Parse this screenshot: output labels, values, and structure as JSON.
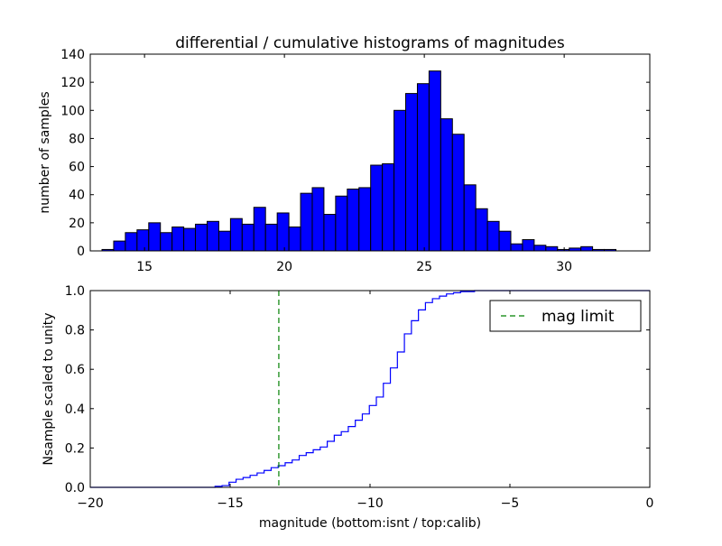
{
  "chart_data": [
    {
      "type": "bar",
      "title": "differential / cumulative histograms of magnitudes",
      "xlabel": "",
      "ylabel": "number of samples",
      "xlim": [
        13.06,
        33.06
      ],
      "ylim": [
        0,
        140
      ],
      "xticks": [
        15,
        20,
        25,
        30
      ],
      "yticks": [
        0,
        20,
        40,
        60,
        80,
        100,
        120,
        140
      ],
      "bin_start": 13.48,
      "bin_width": 0.4175,
      "values": [
        1,
        7,
        13,
        15,
        20,
        13,
        17,
        16,
        19,
        21,
        14,
        23,
        19,
        31,
        19,
        27,
        17,
        41,
        45,
        26,
        39,
        44,
        45,
        61,
        62,
        100,
        112,
        119,
        128,
        94,
        83,
        47,
        30,
        21,
        14,
        5,
        8,
        4,
        3,
        1,
        2,
        3,
        1,
        1
      ],
      "bar_color": "#0000ff"
    },
    {
      "type": "line",
      "style": "step",
      "xlabel": "magnitude (bottom:isnt / top:calib)",
      "ylabel": "Nsample scaled to unity",
      "xlim": [
        -20,
        0
      ],
      "ylim": [
        0,
        1.0
      ],
      "xticks": [
        -20,
        -15,
        -10,
        -5,
        0
      ],
      "yticks": [
        0.0,
        0.2,
        0.4,
        0.6,
        0.8,
        1.0
      ],
      "step_start": -15.54,
      "step_width": 0.2507,
      "values": [
        0.005,
        0.009,
        0.026,
        0.041,
        0.05,
        0.061,
        0.073,
        0.086,
        0.1,
        0.11,
        0.125,
        0.139,
        0.162,
        0.176,
        0.191,
        0.205,
        0.234,
        0.265,
        0.283,
        0.309,
        0.341,
        0.373,
        0.416,
        0.459,
        0.529,
        0.607,
        0.688,
        0.78,
        0.847,
        0.902,
        0.939,
        0.959,
        0.972,
        0.983,
        0.989,
        0.995,
        0.995,
        1.0
      ],
      "line_color": "#0000ff",
      "mag_limit": -13.26,
      "mag_limit_color": "#008000",
      "legend": [
        {
          "label": "mag limit",
          "style": "dashed",
          "color": "#008000"
        }
      ],
      "legend_position": "top-right"
    }
  ]
}
